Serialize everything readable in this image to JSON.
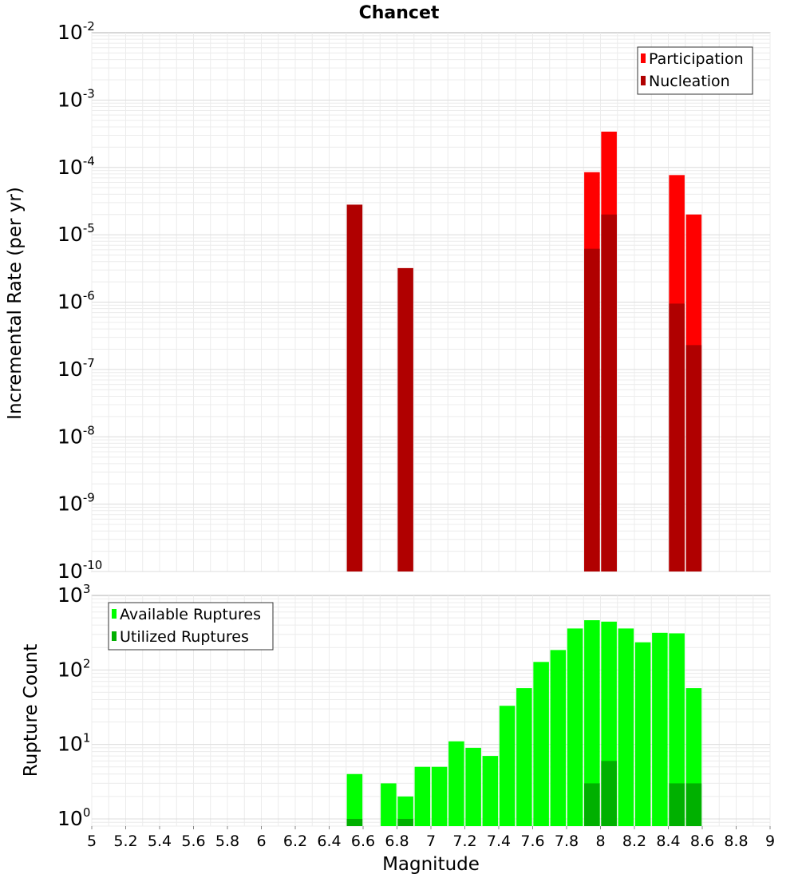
{
  "chart_data": [
    {
      "type": "bar",
      "title": "Chancet",
      "xlabel": "",
      "ylabel": "Incremental Rate (per yr)",
      "yscale": "log",
      "xlim": [
        5,
        9
      ],
      "ylim": [
        1e-10,
        0.01
      ],
      "ytick_labels": [
        {
          "base": "10",
          "exp": "-10"
        },
        {
          "base": "10",
          "exp": "-9"
        },
        {
          "base": "10",
          "exp": "-8"
        },
        {
          "base": "10",
          "exp": "-7"
        },
        {
          "base": "10",
          "exp": "-6"
        },
        {
          "base": "10",
          "exp": "-5"
        },
        {
          "base": "10",
          "exp": "-4"
        },
        {
          "base": "10",
          "exp": "-3"
        },
        {
          "base": "10",
          "exp": "-2"
        }
      ],
      "grid": true,
      "legend_position": "top-right",
      "series": [
        {
          "name": "Participation",
          "color": "#ff0000",
          "x": [
            7.95,
            8.05,
            8.45,
            8.55
          ],
          "values": [
            8.5e-05,
            0.00034,
            7.7e-05,
            2e-05
          ]
        },
        {
          "name": "Nucleation",
          "color": "#b00000",
          "x": [
            6.55,
            6.85,
            7.95,
            8.05,
            8.45,
            8.55
          ],
          "values": [
            2.8e-05,
            3.2e-06,
            6.2e-06,
            2e-05,
            9.5e-07,
            2.3e-07
          ]
        }
      ]
    },
    {
      "type": "bar",
      "title": "",
      "xlabel": "Magnitude",
      "ylabel": "Rupture Count",
      "yscale": "log",
      "xlim": [
        5,
        9
      ],
      "ylim": [
        0.8,
        1000
      ],
      "xtick_labels": [
        "5",
        "5.2",
        "5.4",
        "5.6",
        "5.8",
        "6",
        "6.2",
        "6.4",
        "6.6",
        "6.8",
        "7",
        "7.2",
        "7.4",
        "7.6",
        "7.8",
        "8",
        "8.2",
        "8.4",
        "8.6",
        "8.8",
        "9"
      ],
      "ytick_labels": [
        {
          "base": "10",
          "exp": "0"
        },
        {
          "base": "10",
          "exp": "1"
        },
        {
          "base": "10",
          "exp": "2"
        },
        {
          "base": "10",
          "exp": "3"
        }
      ],
      "grid": true,
      "legend_position": "top-left",
      "series": [
        {
          "name": "Available Ruptures",
          "color": "#00ff00",
          "x": [
            6.55,
            6.75,
            6.85,
            6.95,
            7.05,
            7.15,
            7.25,
            7.35,
            7.45,
            7.55,
            7.65,
            7.75,
            7.85,
            7.95,
            8.05,
            8.15,
            8.25,
            8.35,
            8.45,
            8.55
          ],
          "values": [
            4,
            3,
            2,
            5,
            5,
            11,
            9,
            7,
            33,
            57,
            128,
            185,
            360,
            465,
            445,
            360,
            235,
            315,
            310,
            57
          ]
        },
        {
          "name": "Utilized Ruptures",
          "color": "#00b000",
          "x": [
            6.55,
            6.85,
            7.95,
            8.05,
            8.45,
            8.55
          ],
          "values": [
            1,
            1,
            3,
            6,
            3,
            3
          ]
        }
      ]
    }
  ]
}
